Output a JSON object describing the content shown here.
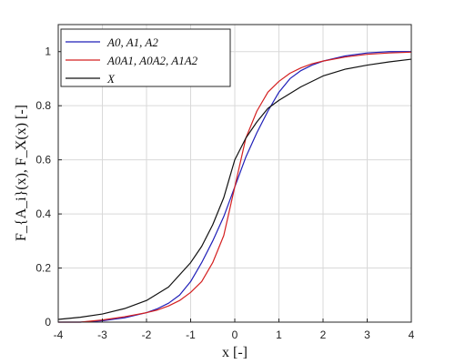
{
  "chart_data": {
    "type": "line",
    "xlabel": "x [-]",
    "ylabel": "F_{A_i}(x), F_X(x) [-]",
    "xlim": [
      -4,
      4
    ],
    "ylim": [
      0,
      1.1
    ],
    "xticks": [
      -4,
      -3,
      -2,
      -1,
      0,
      1,
      2,
      3,
      4
    ],
    "yticks": [
      0,
      0.2,
      0.4,
      0.6,
      0.8,
      1
    ],
    "grid": true,
    "legend_position": "top-left",
    "series": [
      {
        "name": "A0, A1, A2",
        "color": "#1f1fb8",
        "x": [
          -4,
          -3.5,
          -3,
          -2.5,
          -2,
          -1.75,
          -1.5,
          -1.25,
          -1,
          -0.75,
          -0.5,
          -0.25,
          0,
          0.25,
          0.5,
          0.75,
          1,
          1.25,
          1.5,
          1.75,
          2,
          2.5,
          3,
          3.5,
          4
        ],
        "y": [
          0.0,
          0.0,
          0.005,
          0.016,
          0.035,
          0.05,
          0.07,
          0.1,
          0.15,
          0.22,
          0.3,
          0.39,
          0.5,
          0.61,
          0.7,
          0.78,
          0.85,
          0.9,
          0.93,
          0.95,
          0.965,
          0.984,
          0.995,
          1.0,
          1.0
        ]
      },
      {
        "name": "A0A1, A0A2, A1A2",
        "color": "#d42020",
        "x": [
          -4,
          -3.5,
          -3,
          -2.5,
          -2,
          -1.75,
          -1.5,
          -1.25,
          -1,
          -0.75,
          -0.5,
          -0.25,
          0,
          0.25,
          0.5,
          0.75,
          1,
          1.25,
          1.5,
          1.75,
          2,
          2.5,
          3,
          3.5,
          4
        ],
        "y": [
          0.0,
          0.0,
          0.008,
          0.02,
          0.035,
          0.045,
          0.06,
          0.08,
          0.11,
          0.15,
          0.22,
          0.32,
          0.5,
          0.68,
          0.78,
          0.85,
          0.89,
          0.92,
          0.94,
          0.955,
          0.965,
          0.98,
          0.99,
          0.995,
          0.998
        ]
      },
      {
        "name": "X",
        "color": "#111111",
        "x": [
          -4,
          -3.5,
          -3,
          -2.5,
          -2,
          -1.5,
          -1,
          -0.75,
          -0.5,
          -0.25,
          0,
          0.25,
          0.5,
          0.75,
          1,
          1.5,
          2,
          2.5,
          3,
          3.5,
          4
        ],
        "y": [
          0.01,
          0.018,
          0.03,
          0.05,
          0.08,
          0.13,
          0.22,
          0.28,
          0.36,
          0.46,
          0.6,
          0.68,
          0.74,
          0.79,
          0.82,
          0.87,
          0.91,
          0.935,
          0.95,
          0.962,
          0.972
        ]
      }
    ]
  }
}
